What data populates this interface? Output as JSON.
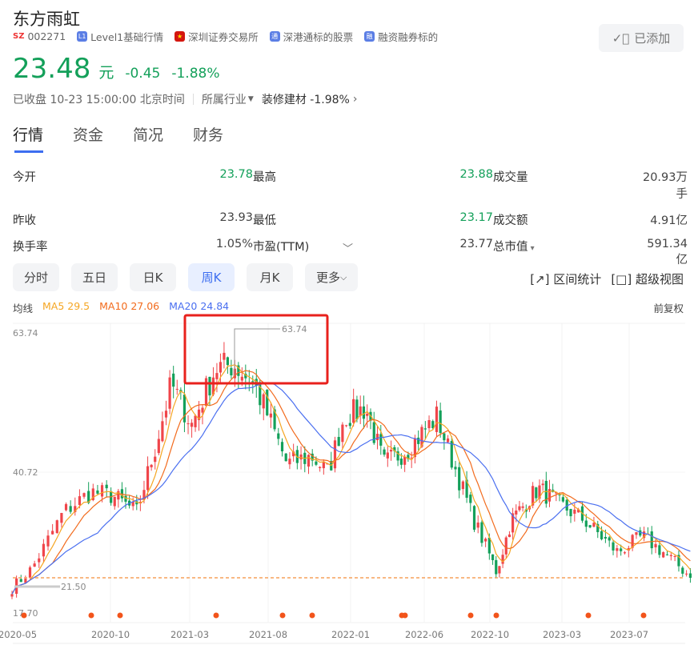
{
  "stock": {
    "name": "东方雨虹",
    "market": "SZ",
    "code": "002271",
    "tags": [
      "Level1基础行情",
      "深圳证券交易所",
      "深港通标的股票",
      "融资融券标的"
    ],
    "tag_icons": [
      "L1",
      "flag-cn",
      "通",
      "融"
    ],
    "added_label": "已添加",
    "price": "23.48",
    "unit": "元",
    "change": "-0.45",
    "change_pct": "-1.88%",
    "status": "已收盘 10-23 15:00:00 北京时间",
    "industry_label": "所属行业",
    "industry": "装修建材 -1.98%"
  },
  "tabs": [
    "行情",
    "资金",
    "简况",
    "财务"
  ],
  "stats": [
    [
      "今开",
      "23.78",
      "最高",
      "23.88",
      "成交量",
      "20.93万手"
    ],
    [
      "昨收",
      "23.93",
      "最低",
      "23.17",
      "成交额",
      "4.91亿"
    ],
    [
      "换手率",
      "1.05%",
      "市盈(TTM)",
      "23.77",
      "总市值",
      "591.34亿"
    ]
  ],
  "ktabs": [
    "分时",
    "五日",
    "日K",
    "周K",
    "月K",
    "更多"
  ],
  "tools": {
    "range": "区间统计",
    "super": "超级视图"
  },
  "ma": {
    "label": "均线",
    "ma5": "MA5 29.5",
    "ma10": "MA10 27.06",
    "ma20": "MA20 24.84"
  },
  "adjust": "前复权",
  "colors": {
    "up": "#f0454a",
    "down": "#14a05a",
    "ma5": "#f5a623",
    "ma10": "#f26b1d",
    "ma20": "#4a6ff0",
    "accent": "#3d6ef0"
  },
  "chart_data": {
    "type": "candlestick",
    "period": "weekly",
    "yticks": [
      "63.74",
      "40.72",
      "17.70"
    ],
    "ylim": [
      17.7,
      63.74
    ],
    "xticks": [
      "2020-05",
      "2020-10",
      "2021-03",
      "2021-08",
      "2022-01",
      "2022-06",
      "2022-10",
      "2023-03",
      "2023-07"
    ],
    "max_label": "63.74",
    "min_label": "21.50",
    "last_price": 23.48,
    "close_path": [
      [
        "2020-05-01",
        21.8
      ],
      [
        "2020-06-01",
        25
      ],
      [
        "2020-07-20",
        34.3
      ],
      [
        "2020-09-01",
        37.6
      ],
      [
        "2020-10-05",
        37
      ],
      [
        "2020-11-20",
        34.3
      ],
      [
        "2020-12-25",
        44.8
      ],
      [
        "2021-01-25",
        55.3
      ],
      [
        "2021-03-05",
        48.7
      ],
      [
        "2021-04-20",
        57.9
      ],
      [
        "2021-05-25",
        58.6
      ],
      [
        "2021-07-05",
        55.3
      ],
      [
        "2021-08-01",
        50
      ],
      [
        "2021-09-05",
        42.2
      ],
      [
        "2021-10-20",
        43.5
      ],
      [
        "2021-11-20",
        40.8
      ],
      [
        "2021-12-20",
        50
      ],
      [
        "2022-02-01",
        51.4
      ],
      [
        "2022-03-10",
        42.2
      ],
      [
        "2022-05-01",
        44.8
      ],
      [
        "2022-06-25",
        50
      ],
      [
        "2022-07-15",
        44.8
      ],
      [
        "2022-09-01",
        33
      ],
      [
        "2022-10-15",
        24.4
      ],
      [
        "2022-11-15",
        33
      ],
      [
        "2023-01-10",
        38.2
      ],
      [
        "2023-04-10",
        33
      ],
      [
        "2023-06-10",
        27.7
      ],
      [
        "2023-07-25",
        30.3
      ],
      [
        "2023-09-01",
        27.7
      ],
      [
        "2023-10-23",
        23.48
      ]
    ]
  }
}
